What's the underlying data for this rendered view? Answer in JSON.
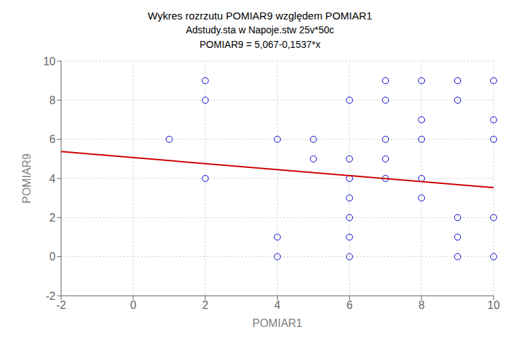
{
  "chart_data": {
    "type": "scatter",
    "title": "Wykres rozrzutu   POMIAR9 względem POMIAR1",
    "subtitle": "Adstudy.sta w Napoje.stw 25v*50c",
    "annotations": [
      "POMIAR9 = 5,067-0,1537*x"
    ],
    "x_label": "POMIAR1",
    "y_label": "POMIAR9",
    "xlim": [
      -2,
      10
    ],
    "ylim": [
      -2,
      10
    ],
    "xticks": [
      -2,
      0,
      2,
      4,
      6,
      8,
      10
    ],
    "yticks": [
      -2,
      0,
      2,
      4,
      6,
      8,
      10
    ],
    "grid": true,
    "series": [
      {
        "type": "scatter",
        "color": "#0000cc",
        "marker": "open_circle",
        "x": [
          1,
          2,
          2,
          2,
          4,
          4,
          4,
          5,
          5,
          6,
          6,
          6,
          6,
          6,
          6,
          6,
          7,
          7,
          7,
          7,
          7,
          8,
          8,
          8,
          8,
          8,
          9,
          9,
          9,
          9,
          9,
          10,
          10,
          10,
          10,
          10
        ],
        "values": [
          6,
          9,
          8,
          4,
          0,
          6,
          1,
          6,
          5,
          3,
          2,
          0,
          8,
          5,
          4,
          1,
          9,
          8,
          6,
          5,
          4,
          9,
          7,
          6,
          4,
          3,
          2,
          1,
          0,
          9,
          8,
          9,
          7,
          6,
          2,
          0
        ]
      },
      {
        "type": "line",
        "color": "#cc0000",
        "line_style": "solid",
        "x": [
          -2,
          10
        ],
        "values": [
          5.3744,
          3.53
        ]
      }
    ]
  }
}
